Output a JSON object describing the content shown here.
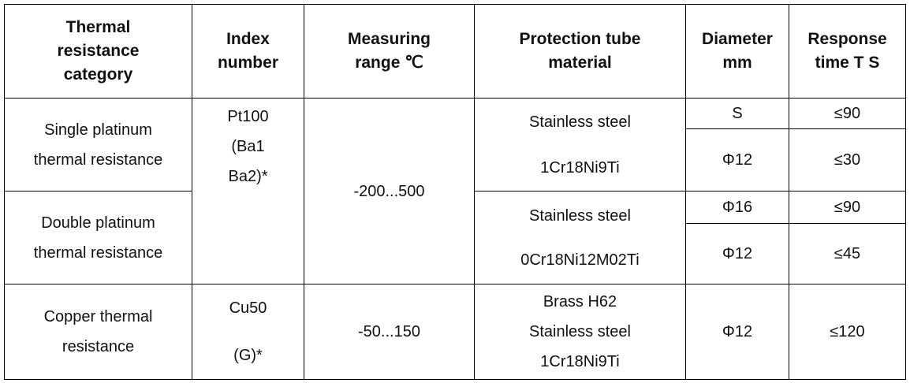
{
  "table": {
    "header": [
      [
        "Thermal",
        "resistance",
        "category"
      ],
      [
        "Index",
        "number"
      ],
      [
        "Measuring",
        "range ℃"
      ],
      [
        "Protection tube",
        "material"
      ],
      [
        "Diameter",
        "mm"
      ],
      [
        "Response",
        "time T S"
      ]
    ],
    "rows": [
      [
        [
          "Single platinum",
          "thermal resistance"
        ],
        [
          "Pt100",
          "(Ba1",
          "Ba2)*"
        ],
        [
          "-200...500"
        ],
        [
          "Stainless steel",
          "1Cr18Ni9Ti"
        ],
        [
          "S"
        ],
        [
          "≤90"
        ]
      ],
      [
        [
          "Φ12"
        ],
        [
          "≤30"
        ]
      ],
      [
        [
          "Double platinum",
          "thermal resistance"
        ],
        [
          "Stainless steel",
          "0Cr18Ni12M02Ti"
        ],
        [
          "Φ16"
        ],
        [
          "≤90"
        ]
      ],
      [
        [
          "Φ12"
        ],
        [
          "≤45"
        ]
      ],
      [
        [
          "Copper thermal",
          "resistance"
        ],
        [
          "Cu50",
          "(G)*"
        ],
        [
          "-50...150"
        ],
        [
          "Brass H62",
          "Stainless steel",
          "1Cr18Ni9Ti"
        ],
        [
          "Φ12"
        ],
        [
          "≤120"
        ]
      ]
    ]
  }
}
